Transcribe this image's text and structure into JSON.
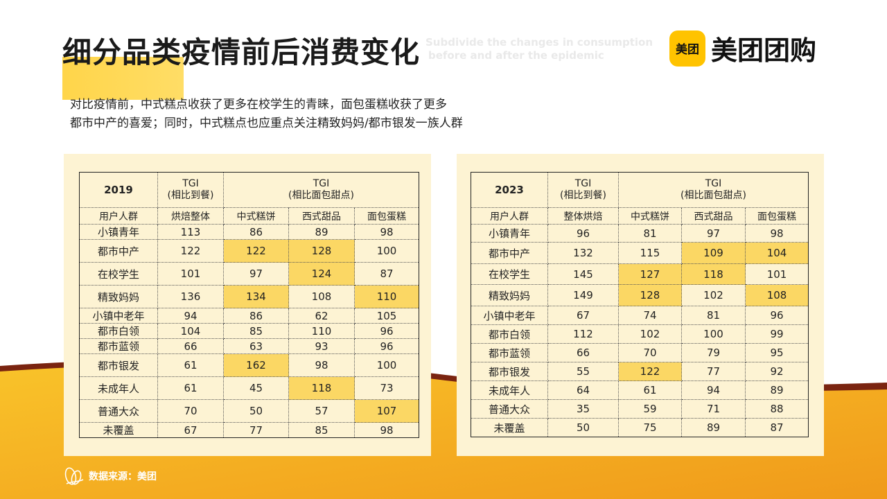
{
  "title": "细分品类疫情前后消费变化",
  "subtitle_en": [
    "Subdivide the changes in consumption",
    "before and after the epidemic"
  ],
  "logo": {
    "badge": "美团",
    "text": "美团团购"
  },
  "description": [
    "对比疫情前，中式糕点收获了更多在校学生的青睐，面包蛋糕收获了更多",
    "都市中产的喜爱；同时，中式糕点也应重点关注精致妈妈/都市银发一族人群"
  ],
  "source": "数据来源：美团",
  "colors": {
    "accent": "#ffc300",
    "highlight": "#fbd764",
    "panel": "#fdf3d3",
    "wave": "#f7b21c"
  },
  "tables": {
    "t2019": {
      "year": "2019",
      "tgi_label": "TGI",
      "tgi_sub_a": "(相比到餐)",
      "tgi_sub_b": "(相比面包甜点)",
      "columns": [
        "用户人群",
        "烘焙整体",
        "中式糕饼",
        "西式甜品",
        "面包蛋糕"
      ],
      "rows": [
        {
          "group": "小镇青年",
          "values": [
            "113",
            "86",
            "89",
            "98"
          ],
          "hl": [
            false,
            false,
            false,
            false
          ]
        },
        {
          "group": "都市中产",
          "values": [
            "122",
            "122",
            "128",
            "100"
          ],
          "hl": [
            false,
            true,
            true,
            false
          ]
        },
        {
          "group": "在校学生",
          "values": [
            "101",
            "97",
            "124",
            "87"
          ],
          "hl": [
            false,
            false,
            true,
            false
          ]
        },
        {
          "group": "精致妈妈",
          "values": [
            "136",
            "134",
            "108",
            "110"
          ],
          "hl": [
            false,
            true,
            false,
            true
          ]
        },
        {
          "group": "小镇中老年",
          "values": [
            "94",
            "86",
            "62",
            "105"
          ],
          "hl": [
            false,
            false,
            false,
            false
          ]
        },
        {
          "group": "都市白领",
          "values": [
            "104",
            "85",
            "110",
            "96"
          ],
          "hl": [
            false,
            false,
            false,
            false
          ]
        },
        {
          "group": "都市蓝领",
          "values": [
            "66",
            "63",
            "93",
            "96"
          ],
          "hl": [
            false,
            false,
            false,
            false
          ]
        },
        {
          "group": "都市银发",
          "values": [
            "61",
            "162",
            "98",
            "100"
          ],
          "hl": [
            false,
            true,
            false,
            false
          ]
        },
        {
          "group": "未成年人",
          "values": [
            "61",
            "45",
            "118",
            "73"
          ],
          "hl": [
            false,
            false,
            true,
            false
          ]
        },
        {
          "group": "普通大众",
          "values": [
            "70",
            "50",
            "57",
            "107"
          ],
          "hl": [
            false,
            false,
            false,
            true
          ]
        },
        {
          "group": "未覆盖",
          "values": [
            "67",
            "77",
            "85",
            "98"
          ],
          "hl": [
            false,
            false,
            false,
            false
          ]
        }
      ]
    },
    "t2023": {
      "year": "2023",
      "tgi_label": "TGI",
      "tgi_sub_a": "(相比到餐)",
      "tgi_sub_b": "(相比面包甜点)",
      "columns": [
        "用户人群",
        "整体烘焙",
        "中式糕饼",
        "西式甜品",
        "面包蛋糕"
      ],
      "rows": [
        {
          "group": "小镇青年",
          "values": [
            "96",
            "81",
            "97",
            "98"
          ],
          "hl": [
            false,
            false,
            false,
            false
          ]
        },
        {
          "group": "都市中产",
          "values": [
            "132",
            "115",
            "109",
            "104"
          ],
          "hl": [
            false,
            false,
            true,
            true
          ]
        },
        {
          "group": "在校学生",
          "values": [
            "145",
            "127",
            "118",
            "101"
          ],
          "hl": [
            false,
            true,
            true,
            false
          ]
        },
        {
          "group": "精致妈妈",
          "values": [
            "149",
            "128",
            "102",
            "108"
          ],
          "hl": [
            false,
            true,
            false,
            true
          ]
        },
        {
          "group": "小镇中老年",
          "values": [
            "67",
            "74",
            "81",
            "96"
          ],
          "hl": [
            false,
            false,
            false,
            false
          ]
        },
        {
          "group": "都市白领",
          "values": [
            "112",
            "102",
            "100",
            "99"
          ],
          "hl": [
            false,
            false,
            false,
            false
          ]
        },
        {
          "group": "都市蓝领",
          "values": [
            "66",
            "70",
            "79",
            "95"
          ],
          "hl": [
            false,
            false,
            false,
            false
          ]
        },
        {
          "group": "都市银发",
          "values": [
            "55",
            "122",
            "77",
            "92"
          ],
          "hl": [
            false,
            true,
            false,
            false
          ]
        },
        {
          "group": "未成年人",
          "values": [
            "64",
            "61",
            "94",
            "89"
          ],
          "hl": [
            false,
            false,
            false,
            false
          ]
        },
        {
          "group": "普通大众",
          "values": [
            "35",
            "59",
            "71",
            "88"
          ],
          "hl": [
            false,
            false,
            false,
            false
          ]
        },
        {
          "group": "未覆盖",
          "values": [
            "50",
            "75",
            "89",
            "87"
          ],
          "hl": [
            false,
            false,
            false,
            false
          ]
        }
      ]
    }
  }
}
